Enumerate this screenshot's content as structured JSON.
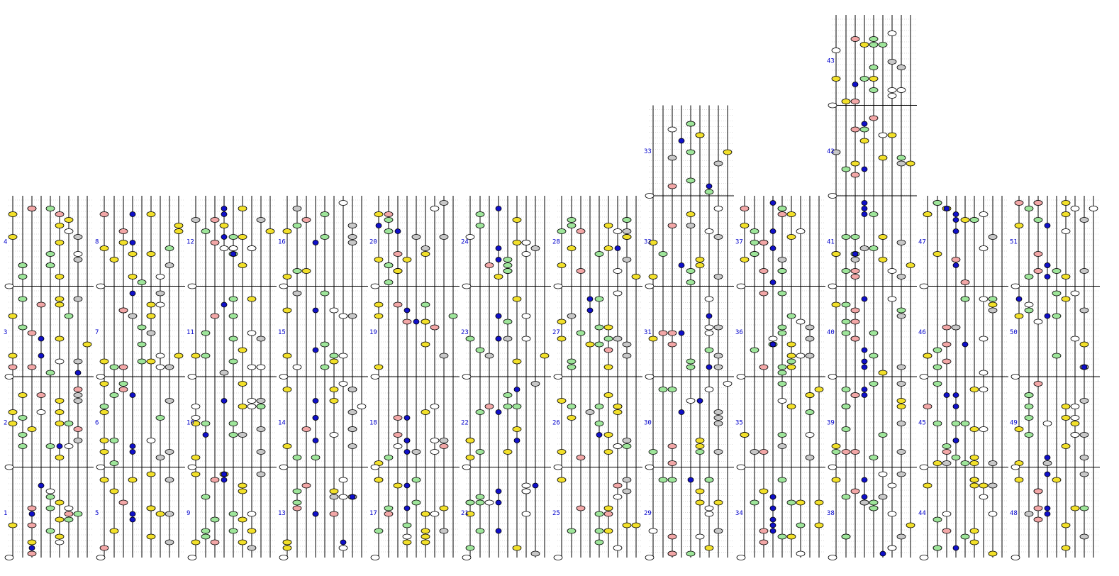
{
  "title": "",
  "colors": {
    "yellow": "#f2e02a",
    "green": "#9ee59a",
    "pink": "#f2a7a7",
    "blue": "#1010c8",
    "white": "#ffffff",
    "gray": "#c8c8c8",
    "staff_line": "#000000",
    "ledger_line": "#b8b8b8",
    "measure_number": "#0000cc"
  },
  "columns": [
    {
      "measures": [
        "1",
        "2",
        "3",
        "4"
      ]
    },
    {
      "measures": [
        "5",
        "6",
        "7",
        "8"
      ]
    },
    {
      "measures": [
        "9",
        "10",
        "11",
        "12"
      ]
    },
    {
      "measures": [
        "13",
        "14",
        "15",
        "16"
      ]
    },
    {
      "measures": [
        "17",
        "18",
        "19",
        "20"
      ]
    },
    {
      "measures": [
        "21",
        "22",
        "23",
        "24"
      ]
    },
    {
      "measures": [
        "25",
        "26",
        "27",
        "28"
      ]
    },
    {
      "measures": [
        "29",
        "30",
        "31",
        "32",
        "33"
      ]
    },
    {
      "measures": [
        "34",
        "35",
        "36",
        "37"
      ]
    },
    {
      "measures": [
        "38",
        "39",
        "40",
        "41",
        "42",
        "43"
      ]
    },
    {
      "measures": [
        "44",
        "45",
        "46",
        "47"
      ]
    },
    {
      "measures": [
        "48",
        "49",
        "50",
        "51"
      ]
    }
  ]
}
